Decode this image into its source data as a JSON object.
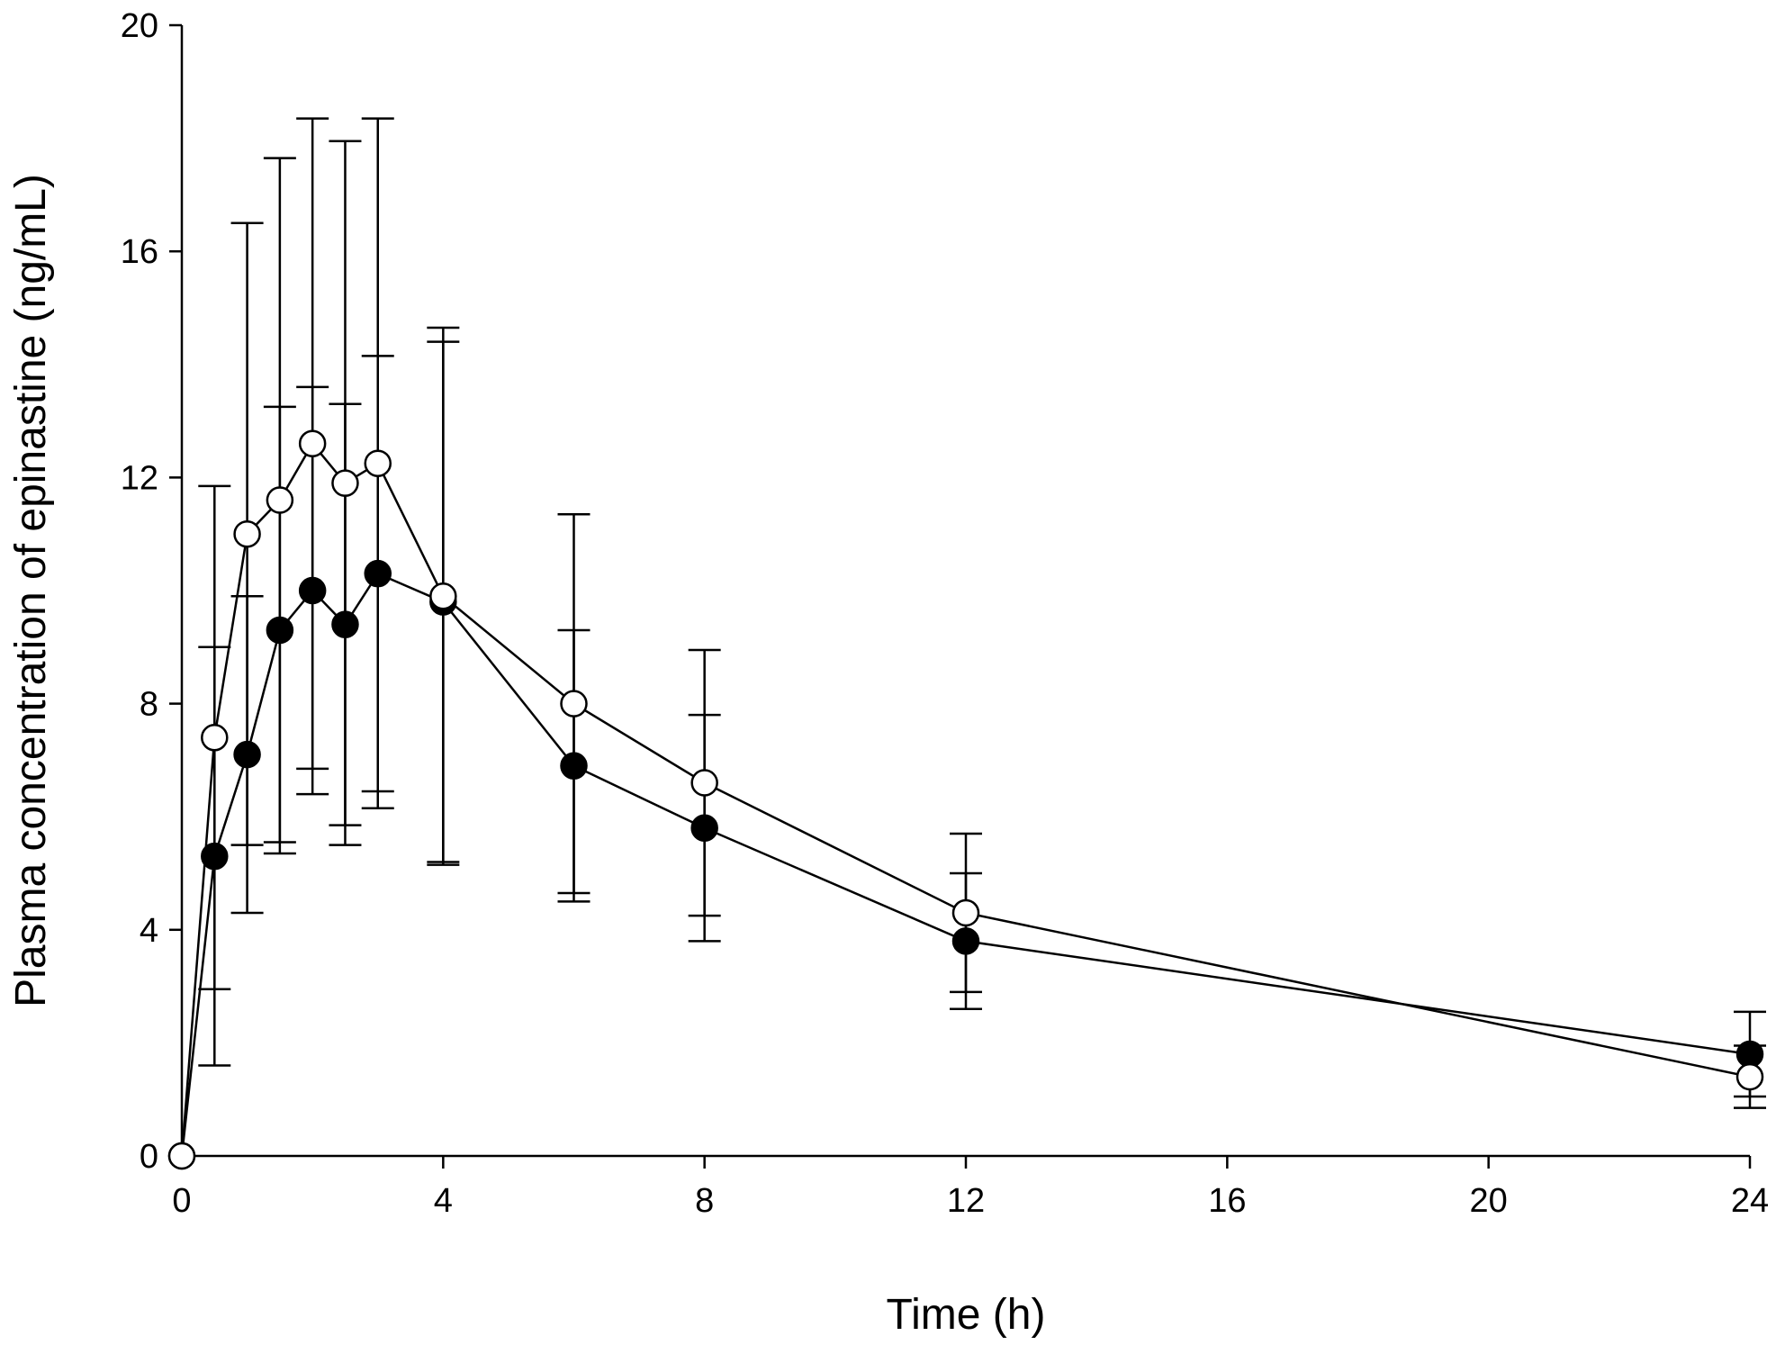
{
  "chart_data": {
    "type": "line",
    "title": "",
    "xlabel": "Time (h)",
    "ylabel": "Plasma concentration of epinastine (ng/mL)",
    "xlim": [
      0,
      24
    ],
    "ylim": [
      0,
      20
    ],
    "xticks": [
      0,
      4,
      8,
      12,
      16,
      20,
      24
    ],
    "yticks": [
      0,
      4,
      8,
      12,
      16,
      20
    ],
    "x": [
      0,
      0.5,
      1,
      1.5,
      2,
      2.5,
      3,
      4,
      6,
      8,
      12,
      24
    ],
    "series": [
      {
        "name": "filled circles",
        "marker": "filled-circle",
        "color": "#000000",
        "values": [
          0,
          5.3,
          7.1,
          9.3,
          10.0,
          9.4,
          10.3,
          9.8,
          6.9,
          5.8,
          3.8,
          1.8
        ],
        "sd": [
          0,
          3.7,
          2.8,
          3.95,
          3.6,
          3.9,
          3.85,
          4.6,
          2.4,
          2.0,
          1.2,
          0.75
        ]
      },
      {
        "name": "open circles",
        "marker": "open-circle",
        "color": "#000000",
        "values": [
          0,
          7.4,
          11.0,
          11.6,
          12.6,
          11.9,
          12.25,
          9.9,
          8.0,
          6.6,
          4.3,
          1.4
        ],
        "sd": [
          0,
          4.45,
          5.5,
          6.05,
          5.75,
          6.05,
          6.1,
          4.75,
          3.35,
          2.35,
          1.4,
          0.55
        ]
      }
    ],
    "grid": false,
    "legend": "none"
  }
}
